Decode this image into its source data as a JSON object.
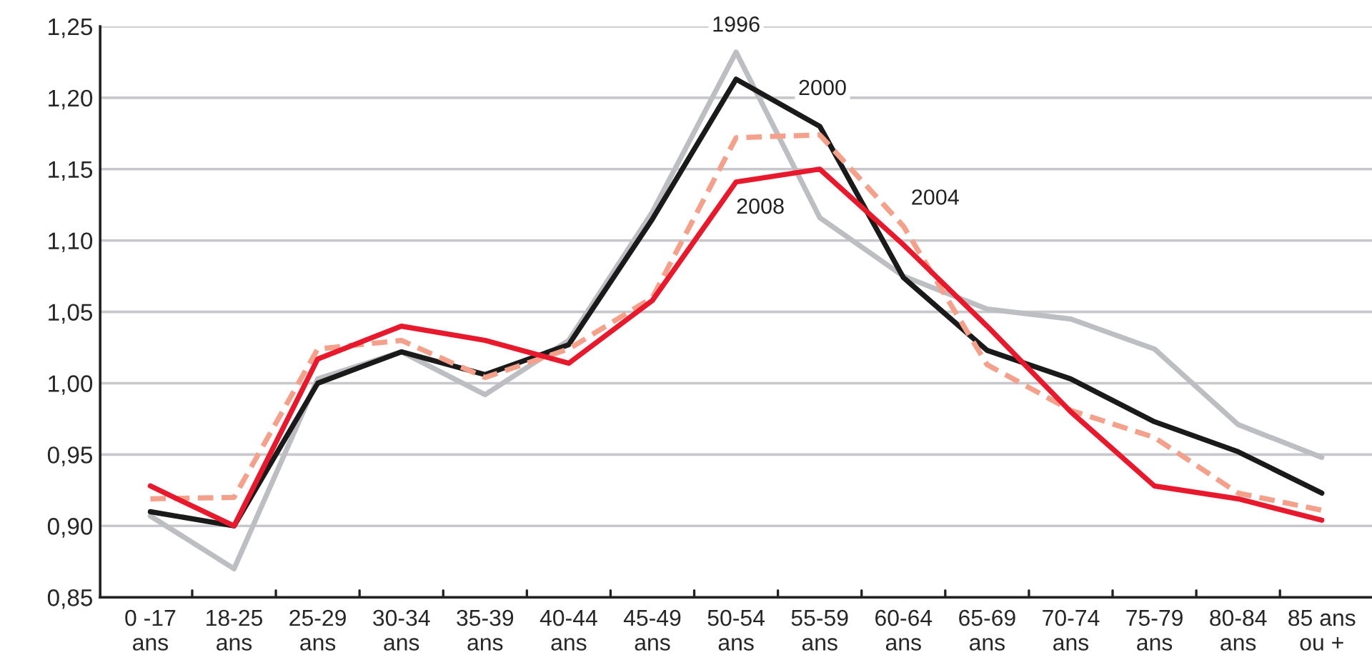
{
  "chart_data": {
    "type": "line",
    "categories": [
      "0 -17\nans",
      "18-25\nans",
      "25-29\nans",
      "30-34\nans",
      "35-39\nans",
      "40-44\nans",
      "45-49\nans",
      "50-54\nans",
      "55-59\nans",
      "60-64\nans",
      "65-69\nans",
      "70-74\nans",
      "75-79\nans",
      "80-84\nans",
      "85 ans\nou +"
    ],
    "series": [
      {
        "name": "1996",
        "color": "#bdbec2",
        "line_style": "solid",
        "values": [
          0.907,
          0.87,
          1.003,
          1.022,
          0.992,
          1.03,
          1.12,
          1.232,
          1.116,
          1.075,
          1.052,
          1.045,
          1.024,
          0.971,
          0.948
        ]
      },
      {
        "name": "2000",
        "color": "#1a1a1a",
        "line_style": "solid",
        "values": [
          0.91,
          0.9,
          1.0,
          1.022,
          1.006,
          1.027,
          1.115,
          1.213,
          1.18,
          1.074,
          1.023,
          1.003,
          0.973,
          0.952,
          0.923
        ]
      },
      {
        "name": "2004",
        "color": "#f4a08a",
        "line_style": "dashed",
        "values": [
          0.919,
          0.92,
          1.024,
          1.03,
          1.004,
          1.024,
          1.06,
          1.172,
          1.174,
          1.11,
          1.013,
          0.981,
          0.962,
          0.923,
          0.911
        ]
      },
      {
        "name": "2008",
        "color": "#e8192c",
        "line_style": "solid",
        "values": [
          0.928,
          0.9,
          1.017,
          1.04,
          1.03,
          1.014,
          1.058,
          1.141,
          1.15,
          1.097,
          1.04,
          0.98,
          0.928,
          0.919,
          0.904
        ]
      }
    ],
    "ylim": [
      0.85,
      1.25
    ],
    "yticks": [
      {
        "value": 0.85,
        "label": "0,85"
      },
      {
        "value": 0.9,
        "label": "0,90"
      },
      {
        "value": 0.95,
        "label": "0,95"
      },
      {
        "value": 1.0,
        "label": "1,00"
      },
      {
        "value": 1.05,
        "label": "1,05"
      },
      {
        "value": 1.1,
        "label": "1,10"
      },
      {
        "value": 1.15,
        "label": "1,15"
      },
      {
        "value": 1.2,
        "label": "1,20"
      },
      {
        "value": 1.25,
        "label": "1,25"
      }
    ],
    "grid": "y",
    "legend": false,
    "marker": "none"
  }
}
